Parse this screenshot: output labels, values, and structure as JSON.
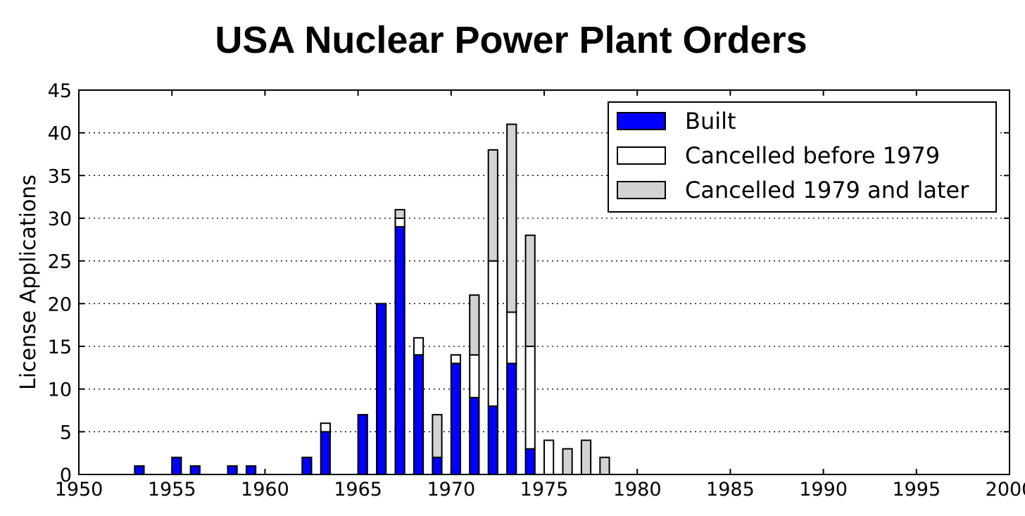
{
  "chart_data": {
    "type": "bar",
    "stacked": true,
    "title": "USA Nuclear Power Plant Orders",
    "xlabel": "",
    "ylabel": "License Applications",
    "xlim": [
      1950,
      2000
    ],
    "ylim": [
      0,
      45
    ],
    "x_ticks": [
      "1950",
      "1955",
      "1960",
      "1965",
      "1970",
      "1975",
      "1980",
      "1985",
      "1990",
      "1995",
      "2000"
    ],
    "y_ticks": [
      "0",
      "5",
      "10",
      "15",
      "20",
      "25",
      "30",
      "35",
      "40",
      "45"
    ],
    "grid": "horizontal dotted",
    "legend_position": "top-right",
    "x": [
      1953,
      1955,
      1956,
      1958,
      1959,
      1962,
      1963,
      1965,
      1966,
      1967,
      1968,
      1969,
      1970,
      1971,
      1972,
      1973,
      1974,
      1975,
      1976,
      1977,
      1978
    ],
    "series": [
      {
        "name": "Built",
        "color": "#0000ff",
        "values": [
          1,
          2,
          1,
          1,
          1,
          2,
          5,
          7,
          20,
          29,
          14,
          2,
          13,
          9,
          8,
          13,
          3,
          0,
          0,
          0,
          0
        ]
      },
      {
        "name": "Cancelled before 1979",
        "color": "#ffffff",
        "values": [
          0,
          0,
          0,
          0,
          0,
          0,
          1,
          0,
          0,
          1,
          2,
          0,
          1,
          5,
          17,
          6,
          12,
          4,
          0,
          0,
          0
        ]
      },
      {
        "name": "Cancelled 1979 and later",
        "color": "#d3d3d3",
        "values": [
          0,
          0,
          0,
          0,
          0,
          0,
          0,
          0,
          0,
          1,
          0,
          5,
          0,
          7,
          13,
          22,
          13,
          0,
          3,
          4,
          2
        ]
      }
    ]
  }
}
